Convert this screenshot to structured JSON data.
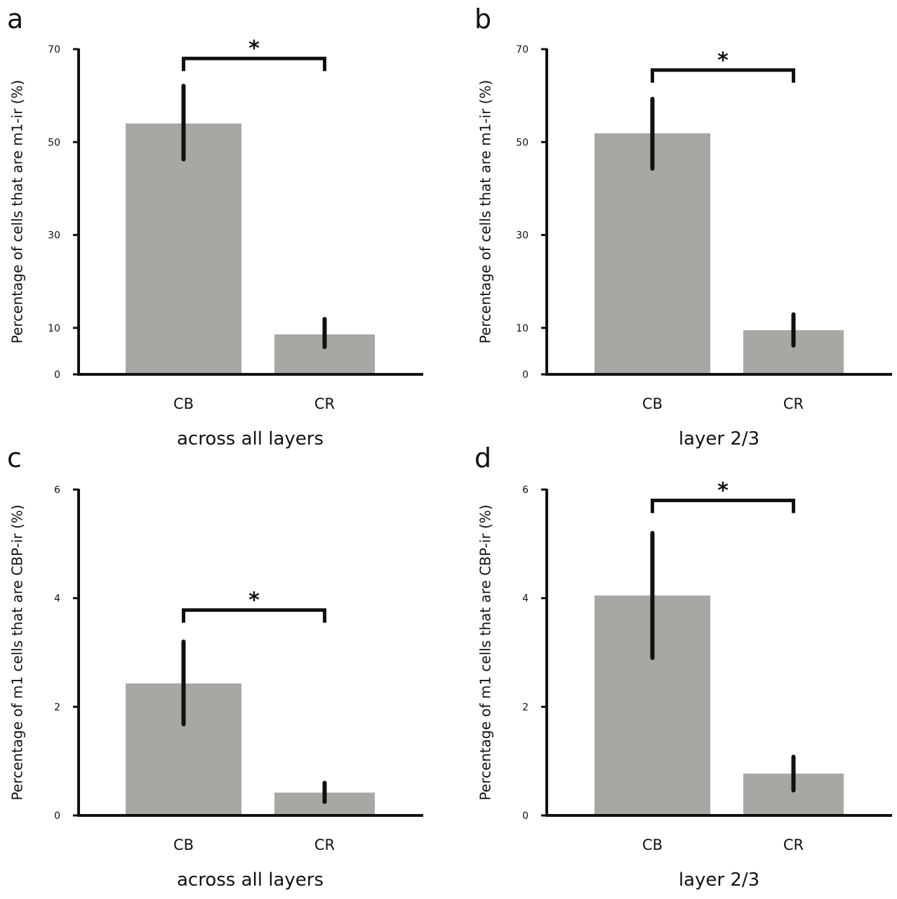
{
  "colors": {
    "bar": "#a9a7a4",
    "axis": "#111111",
    "errorbar": "#111111"
  },
  "chart_data": [
    {
      "panel": "a",
      "type": "bar",
      "categories": [
        "CB",
        "CR"
      ],
      "values": [
        54,
        8.6
      ],
      "error_low": [
        46.3,
        5.9
      ],
      "error_high": [
        62.1,
        11.9
      ],
      "xlabel": "across all layers",
      "ylabel": "Percentage of cells that are m1-ir (%)",
      "ylim": [
        0,
        70
      ],
      "yticks": [
        0,
        10,
        30,
        50,
        70
      ],
      "significance": {
        "label": "*",
        "between": [
          "CB",
          "CR"
        ],
        "y": 68
      }
    },
    {
      "panel": "b",
      "type": "bar",
      "categories": [
        "CB",
        "CR"
      ],
      "values": [
        51.9,
        9.5
      ],
      "error_low": [
        44.3,
        6.2
      ],
      "error_high": [
        59.3,
        12.9
      ],
      "xlabel": "layer 2/3",
      "ylabel": "Percentage of cells that are m1-ir (%)",
      "ylim": [
        0,
        70
      ],
      "yticks": [
        0,
        10,
        30,
        50,
        70
      ],
      "significance": {
        "label": "*",
        "between": [
          "CB",
          "CR"
        ],
        "y": 65.5
      }
    },
    {
      "panel": "c",
      "type": "bar",
      "categories": [
        "CB",
        "CR"
      ],
      "values": [
        2.43,
        0.42
      ],
      "error_low": [
        1.68,
        0.25
      ],
      "error_high": [
        3.2,
        0.6
      ],
      "xlabel": "across all layers",
      "ylabel": "Percentage of m1 cells that are CBP-ir (%)",
      "ylim": [
        0,
        6
      ],
      "yticks": [
        0,
        2,
        4,
        6
      ],
      "significance": {
        "label": "*",
        "between": [
          "CB",
          "CR"
        ],
        "y": 3.78
      }
    },
    {
      "panel": "d",
      "type": "bar",
      "categories": [
        "CB",
        "CR"
      ],
      "values": [
        4.05,
        0.77
      ],
      "error_low": [
        2.9,
        0.46
      ],
      "error_high": [
        5.2,
        1.08
      ],
      "xlabel": "layer 2/3",
      "ylabel": "Percentage of m1 cells that are CBP-ir (%)",
      "ylim": [
        0,
        6
      ],
      "yticks": [
        0,
        2,
        4,
        6
      ],
      "significance": {
        "label": "*",
        "between": [
          "CB",
          "CR"
        ],
        "y": 5.8
      }
    }
  ]
}
